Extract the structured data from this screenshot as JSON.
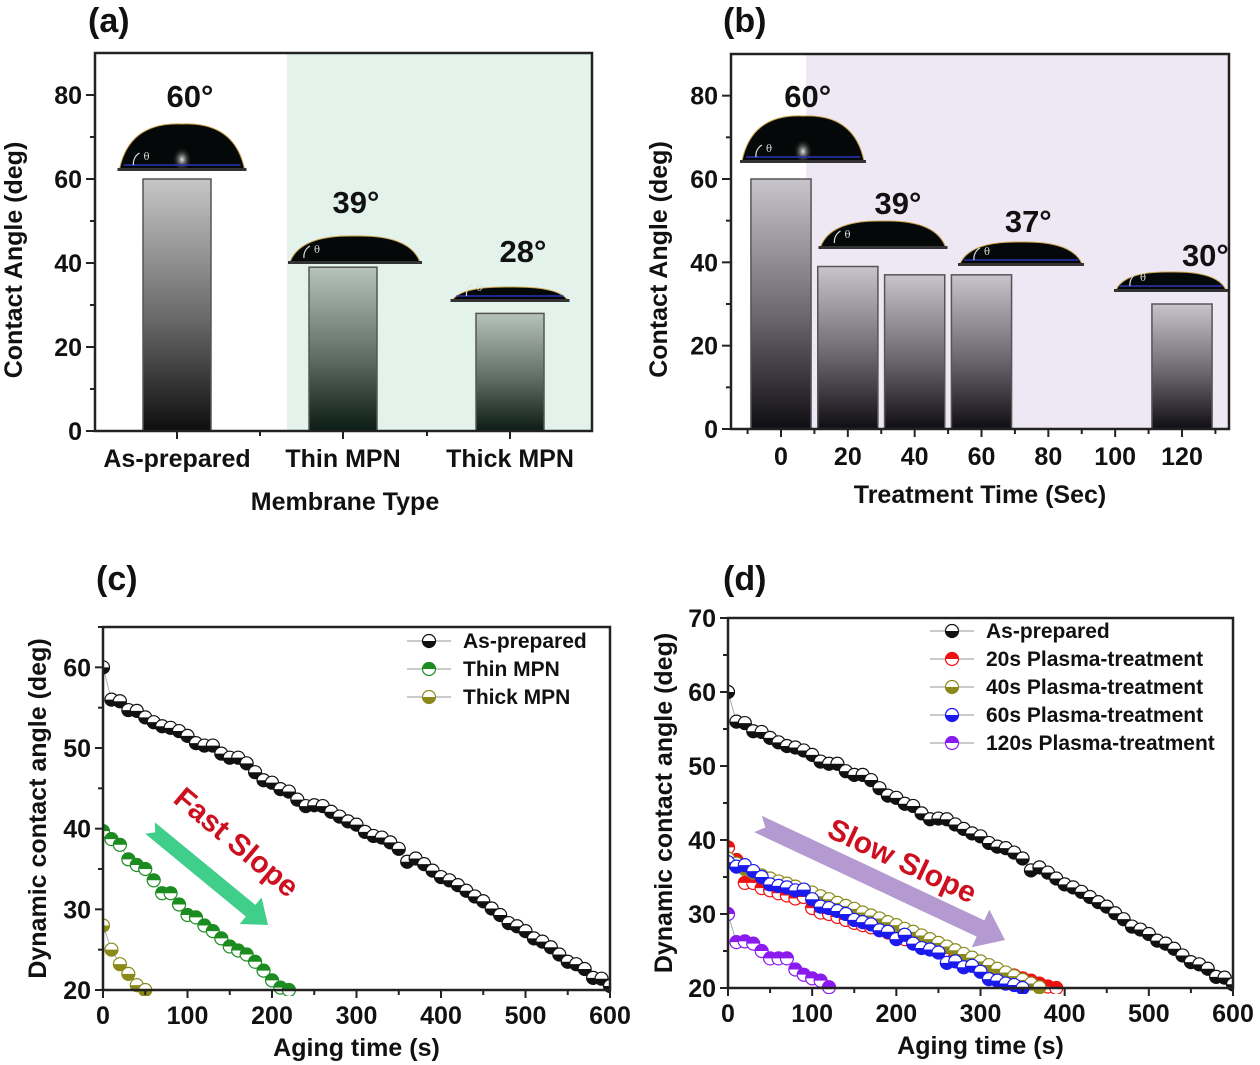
{
  "figure": {
    "panel_labels": [
      "(a)",
      "(b)",
      "(c)",
      "(d)"
    ]
  },
  "chart_data": [
    {
      "panel": "(a)",
      "type": "bar",
      "title": "",
      "xlabel": "Membrane Type",
      "ylabel": "Contact Angle (deg)",
      "categories": [
        "As-prepared",
        "Thin MPN",
        "Thick MPN"
      ],
      "values": [
        60,
        39,
        28
      ],
      "annotations": [
        "60°",
        "39°",
        "28°"
      ],
      "ylim": [
        0,
        90
      ],
      "yticks": [
        0,
        20,
        40,
        60,
        80
      ],
      "shaded_region": {
        "from_category_index": 1,
        "color": "#e3f3ec"
      },
      "bar_colors": {
        "top": "#c4c4c4",
        "bottom": "#111111",
        "thin_top": "#b5c2bb",
        "thin_bottom": "#0c1f16"
      },
      "inset_images": "water droplet photographs above each bar",
      "grid": false
    },
    {
      "panel": "(b)",
      "type": "bar",
      "title": "",
      "xlabel": "Treatment Time (Sec)",
      "ylabel": "Contact Angle (deg)",
      "x": [
        0,
        20,
        40,
        60,
        120
      ],
      "values": [
        60,
        39,
        37,
        37,
        30
      ],
      "annotations": [
        "60°",
        "39°",
        "37°",
        "30°"
      ],
      "annotation_positions": [
        0,
        30,
        70,
        125
      ],
      "xticks": [
        0,
        20,
        40,
        60,
        80,
        100,
        120
      ],
      "xlim": [
        -15,
        135
      ],
      "ylim": [
        0,
        90
      ],
      "yticks": [
        0,
        20,
        40,
        60,
        80
      ],
      "shaded_region": {
        "from_x": 7.5,
        "color": "#eee8f4"
      },
      "bar_colors": {
        "top": "#c6c2cb",
        "bottom": "#0f0e12"
      },
      "grid": false
    },
    {
      "panel": "(c)",
      "type": "scatter",
      "title": "",
      "xlabel": "Aging time (s)",
      "ylabel": "Dynamic contact angle (deg)",
      "xlim": [
        0,
        600
      ],
      "ylim": [
        20,
        65
      ],
      "xticks": [
        0,
        100,
        200,
        300,
        400,
        500,
        600
      ],
      "yticks": [
        20,
        30,
        40,
        50,
        60
      ],
      "legend_position": "top-right",
      "annotation": {
        "text": "Fast Slope",
        "color": "#cc1020",
        "arrow_color": "#3fcf8a"
      },
      "series": [
        {
          "name": "As-prepared",
          "color": "#111111",
          "fill_half": "bottom",
          "x": [
            0,
            10,
            20,
            30,
            40,
            50,
            60,
            70,
            80,
            90,
            100,
            110,
            120,
            130,
            140,
            150,
            160,
            170,
            180,
            190,
            200,
            210,
            220,
            230,
            240,
            250,
            260,
            270,
            280,
            290,
            300,
            310,
            320,
            330,
            340,
            350,
            360,
            370,
            380,
            390,
            400,
            410,
            420,
            430,
            440,
            450,
            460,
            470,
            480,
            490,
            500,
            510,
            520,
            530,
            540,
            550,
            560,
            570,
            580,
            590,
            600
          ],
          "y": [
            60,
            56,
            55.8,
            54.7,
            54.6,
            53.8,
            53.2,
            52.7,
            52.5,
            52.1,
            51.5,
            50.6,
            50.3,
            50.3,
            49.3,
            48.8,
            48.8,
            48.1,
            47,
            46,
            45.7,
            44.9,
            44.6,
            43.6,
            42.8,
            42.9,
            42.8,
            42.1,
            41.5,
            40.9,
            40.5,
            39.6,
            39.1,
            38.9,
            38.3,
            37.5,
            35.9,
            36.3,
            35.6,
            34.8,
            34,
            33.6,
            33,
            32.3,
            31.6,
            31,
            30.1,
            29.3,
            28.3,
            27.9,
            27.3,
            26.4,
            26,
            25.3,
            24.4,
            23.5,
            23.2,
            22.6,
            21.5,
            21.4,
            20.5
          ]
        },
        {
          "name": "Thin MPN",
          "color": "#1c8c20",
          "fill_half": "top",
          "x": [
            0,
            10,
            20,
            30,
            40,
            50,
            60,
            70,
            80,
            90,
            100,
            110,
            120,
            130,
            140,
            150,
            160,
            170,
            180,
            190,
            200,
            210,
            220
          ],
          "y": [
            39.7,
            38.7,
            38,
            36.2,
            35.5,
            35,
            33.6,
            32,
            32,
            30.6,
            29.3,
            29,
            28,
            27.3,
            26.4,
            25.4,
            24.9,
            24.4,
            23.5,
            22.4,
            21.2,
            20.3,
            20
          ]
        },
        {
          "name": "Thick MPN",
          "color": "#8a8a1a",
          "fill_half": "bottom",
          "x": [
            0,
            10,
            20,
            30,
            40,
            50
          ],
          "y": [
            28,
            25,
            23.2,
            22,
            20.6,
            20
          ]
        }
      ]
    },
    {
      "panel": "(d)",
      "type": "scatter",
      "title": "",
      "xlabel": "Aging time (s)",
      "ylabel": "Dynamic contact angle (deg)",
      "xlim": [
        0,
        600
      ],
      "ylim": [
        20,
        70
      ],
      "xticks": [
        0,
        100,
        200,
        300,
        400,
        500,
        600
      ],
      "yticks": [
        20,
        30,
        40,
        50,
        60,
        70
      ],
      "legend_position": "top-right",
      "annotation": {
        "text": "Slow Slope",
        "color": "#cc1020",
        "arrow_color": "#b49ad0"
      },
      "series": [
        {
          "name": "As-prepared",
          "color": "#111111",
          "fill_half": "bottom",
          "x": [
            0,
            10,
            20,
            30,
            40,
            50,
            60,
            70,
            80,
            90,
            100,
            110,
            120,
            130,
            140,
            150,
            160,
            170,
            180,
            190,
            200,
            210,
            220,
            230,
            240,
            250,
            260,
            270,
            280,
            290,
            300,
            310,
            320,
            330,
            340,
            350,
            360,
            370,
            380,
            390,
            400,
            410,
            420,
            430,
            440,
            450,
            460,
            470,
            480,
            490,
            500,
            510,
            520,
            530,
            540,
            550,
            560,
            570,
            580,
            590,
            600
          ],
          "y": [
            60,
            56,
            55.8,
            54.7,
            54.6,
            53.8,
            53.2,
            52.7,
            52.5,
            52.1,
            51.5,
            50.6,
            50.3,
            50.3,
            49.3,
            48.8,
            48.8,
            48.1,
            47,
            46,
            45.7,
            44.9,
            44.6,
            43.6,
            42.8,
            42.9,
            42.8,
            42.1,
            41.5,
            40.9,
            40.5,
            39.6,
            39.1,
            38.9,
            38.3,
            37.5,
            35.9,
            36.3,
            35.6,
            34.8,
            34,
            33.6,
            33,
            32.3,
            31.6,
            31,
            30.1,
            29.3,
            28.3,
            27.9,
            27.3,
            26.4,
            26,
            25.3,
            24.4,
            23.5,
            23.2,
            22.6,
            21.5,
            21.4,
            20.5
          ]
        },
        {
          "name": "20s Plasma-treatment",
          "color": "#ee1111",
          "fill_half": "top",
          "x": [
            0,
            10,
            20,
            30,
            40,
            50,
            60,
            70,
            80,
            90,
            100,
            110,
            120,
            130,
            140,
            150,
            160,
            170,
            180,
            190,
            200,
            210,
            220,
            230,
            240,
            250,
            260,
            270,
            280,
            290,
            300,
            310,
            320,
            330,
            340,
            350,
            360,
            370,
            380,
            390
          ],
          "y": [
            39,
            37.3,
            34.2,
            34.2,
            33.5,
            33.2,
            32.8,
            32.5,
            32.1,
            32.3,
            30.8,
            30.2,
            30,
            29.6,
            29.2,
            28.8,
            28.5,
            28.2,
            27.9,
            27.5,
            27,
            26.6,
            26.2,
            25.8,
            25.4,
            25,
            24.6,
            24.2,
            23.8,
            23.4,
            23,
            22.7,
            22.4,
            22,
            21.7,
            21.3,
            21,
            20.6,
            20.2,
            20
          ]
        },
        {
          "name": "40s Plasma-treatment",
          "color": "#8a8a1a",
          "fill_half": "bottom",
          "x": [
            0,
            10,
            20,
            30,
            40,
            50,
            60,
            70,
            80,
            90,
            100,
            110,
            120,
            130,
            140,
            150,
            160,
            170,
            180,
            190,
            200,
            210,
            220,
            230,
            240,
            250,
            260,
            270,
            280,
            290,
            300,
            310,
            320,
            330,
            340,
            350,
            360,
            370
          ],
          "y": [
            37.5,
            36.8,
            36.1,
            35.6,
            35.2,
            34.8,
            34.4,
            34.1,
            33.7,
            33.3,
            32.9,
            32.4,
            32,
            31.5,
            31.1,
            30.7,
            30.2,
            29.8,
            29.4,
            28.9,
            28.5,
            28,
            27.6,
            27.1,
            26.6,
            26.1,
            25.6,
            25.1,
            24.6,
            24.1,
            23.6,
            23.1,
            22.6,
            22.1,
            21.6,
            21.1,
            20.6,
            20.1
          ]
        },
        {
          "name": "60s Plasma-treatment",
          "color": "#1a1aee",
          "fill_half": "bottom",
          "x": [
            0,
            10,
            20,
            30,
            40,
            50,
            60,
            70,
            80,
            90,
            100,
            110,
            120,
            130,
            140,
            150,
            160,
            170,
            180,
            190,
            200,
            210,
            220,
            230,
            240,
            250,
            260,
            270,
            280,
            290,
            300,
            310,
            320,
            330,
            340,
            350
          ],
          "y": [
            37,
            36.4,
            36.6,
            35.8,
            35,
            34,
            33.8,
            33.6,
            33.2,
            33.3,
            32,
            31,
            30.8,
            30.4,
            30,
            29.2,
            28.9,
            28.6,
            27.8,
            27.6,
            26.6,
            27.2,
            26,
            25.4,
            25.2,
            24.8,
            23.4,
            23.6,
            22.8,
            23,
            22.2,
            21.2,
            21,
            20.6,
            20.4,
            20
          ]
        },
        {
          "name": "120s Plasma-treatment",
          "color": "#8a1aee",
          "fill_half": "top",
          "x": [
            0,
            10,
            20,
            30,
            40,
            50,
            60,
            70,
            80,
            90,
            100,
            110,
            120
          ],
          "y": [
            30,
            26.2,
            26.3,
            26,
            25,
            24,
            24,
            24,
            22.5,
            21.8,
            21.3,
            21,
            20.1
          ]
        }
      ]
    }
  ]
}
